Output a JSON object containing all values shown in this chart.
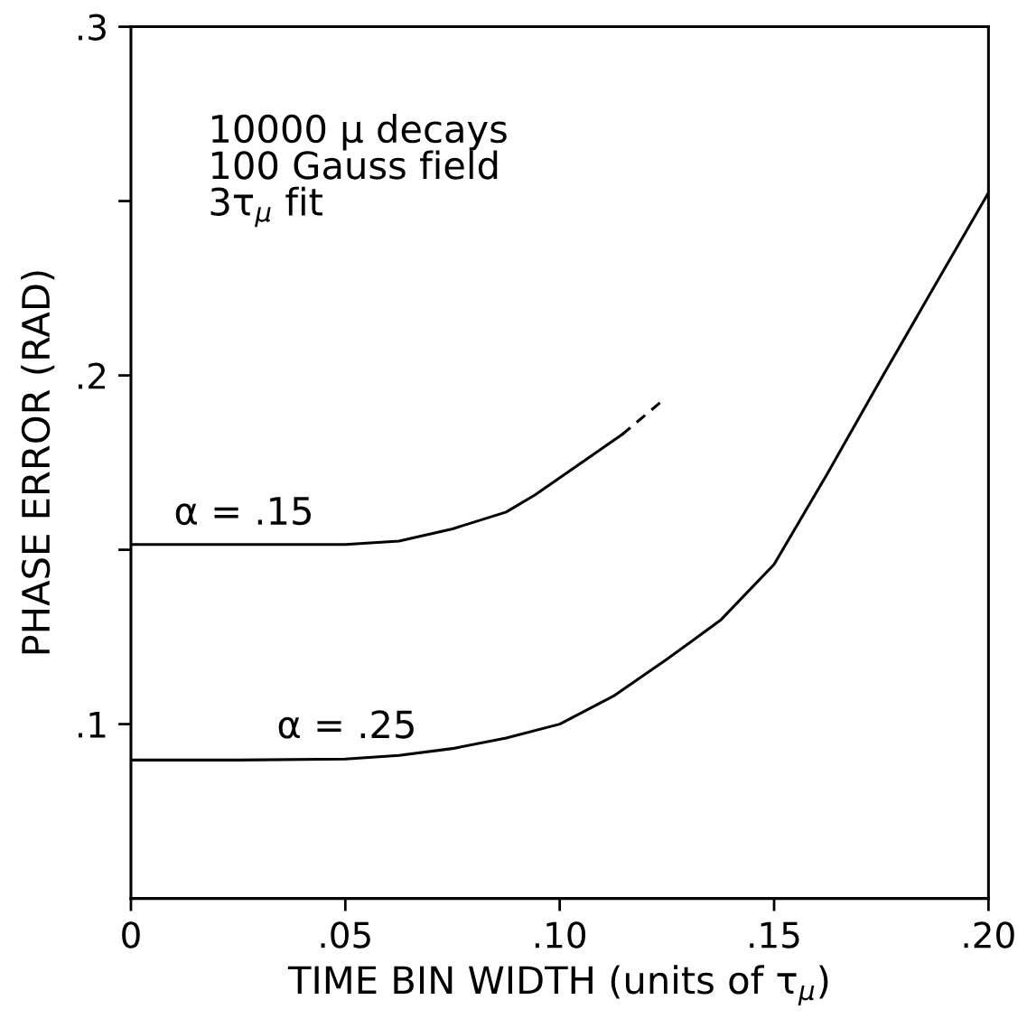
{
  "chart_data": {
    "type": "line",
    "xlabel": "TIME BIN WIDTH (units of τ$_{μ}$)",
    "ylabel": "PHASE ERROR (RAD)",
    "xlim": [
      0,
      0.2
    ],
    "ylim": [
      0.05,
      0.3
    ],
    "xticks": [
      0,
      {
        "value": 0.05,
        "label": ".05"
      },
      {
        "value": 0.1,
        "label": ".10"
      },
      {
        "value": 0.15,
        "label": ".15"
      },
      {
        "value": 0.2,
        "label": ".20"
      }
    ],
    "yticks": [
      {
        "value": 0.1,
        "label": ".1"
      },
      {
        "value": 0.15,
        "label": null
      },
      {
        "value": 0.2,
        "label": ".2"
      },
      {
        "value": 0.25,
        "label": null
      },
      {
        "value": 0.3,
        "label": ".3"
      }
    ],
    "grid": false,
    "marker": "none",
    "series": [
      {
        "color": "#000000",
        "line_style": "solid",
        "x": [
          0,
          0.025,
          0.05,
          0.0625,
          0.075,
          0.0875,
          0.0942,
          0.1145
        ],
        "values": [
          0.1515,
          0.1515,
          0.1515,
          0.1525,
          0.156,
          0.1608,
          0.1657,
          0.183
        ]
      },
      {
        "color": "#000000",
        "line_style": "dashed",
        "x": [
          0.1145,
          0.1236
        ],
        "values": [
          0.183,
          0.1924
        ]
      },
      {
        "color": "#000000",
        "line_style": "solid",
        "x": [
          0,
          0.025,
          0.05,
          0.0625,
          0.075,
          0.0875,
          0.1,
          0.1125,
          0.125,
          0.1375,
          0.15,
          0.1625,
          0.175,
          0.1875,
          0.2
        ],
        "values": [
          0.0897,
          0.0897,
          0.09,
          0.091,
          0.093,
          0.096,
          0.1,
          0.108,
          0.1186,
          0.1298,
          0.1458,
          0.172,
          0.1991,
          0.2258,
          0.2524
        ]
      }
    ],
    "annotations": [
      "10000 μ decays\n100 Gauss field\n3τ$_{μ}$ fit",
      "α = .15",
      "α = .25"
    ]
  }
}
